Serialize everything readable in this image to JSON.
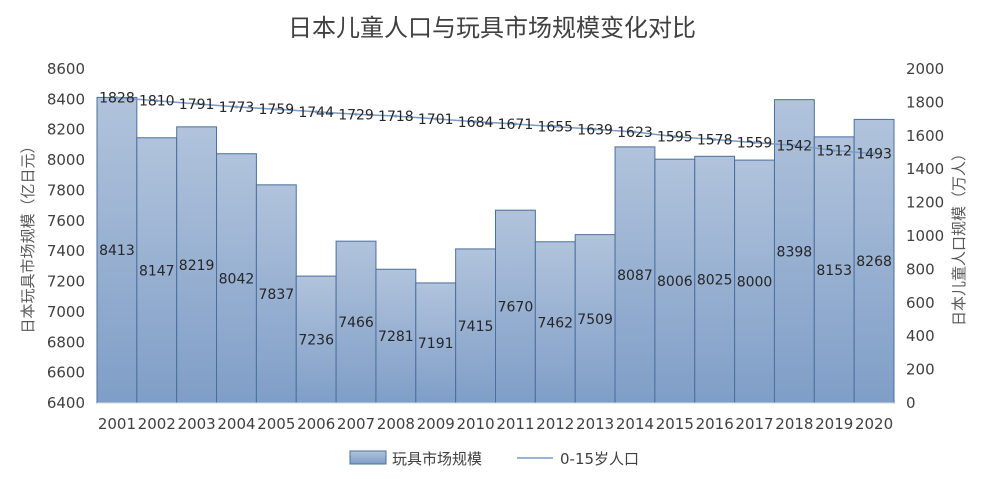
{
  "chart_data": {
    "type": "bar",
    "title": "日本儿童人口与玩具市场规模变化对比",
    "categories": [
      "2001",
      "2002",
      "2003",
      "2004",
      "2005",
      "2006",
      "2007",
      "2008",
      "2009",
      "2010",
      "2011",
      "2012",
      "2013",
      "2014",
      "2015",
      "2016",
      "2017",
      "2018",
      "2019",
      "2020"
    ],
    "series": [
      {
        "name": "玩具市场规模",
        "kind": "bar",
        "axis": "left",
        "values": [
          8413,
          8147,
          8219,
          8042,
          7837,
          7236,
          7466,
          7281,
          7191,
          7415,
          7670,
          7462,
          7509,
          8087,
          8006,
          8025,
          8000,
          8398,
          8153,
          8268
        ],
        "labels": [
          "8413",
          "8147",
          "8219",
          "8042",
          "7837",
          "7236",
          "7466",
          "7281",
          "7191",
          "7415",
          "7670",
          "7462",
          "7509",
          "8087",
          "8006",
          "8025",
          "8000",
          "8398",
          "8153",
          "8268"
        ]
      },
      {
        "name": "0-15岁人口",
        "kind": "line",
        "axis": "right",
        "values": [
          1828,
          1810,
          1791,
          1773,
          1759,
          1744,
          1729,
          1718,
          1701,
          1684,
          1671,
          1655,
          1639,
          1623,
          1595,
          1578,
          1559,
          1542,
          1512,
          1493
        ],
        "labels": [
          "1828",
          "1810",
          "1791",
          "1773",
          "1759",
          "1744",
          "1729",
          "1718",
          "1701",
          "1684",
          "1671",
          "1655",
          "1639",
          "1623",
          "1595",
          "1578",
          "1559",
          "1542",
          "1512",
          "1493"
        ]
      }
    ],
    "ylabel": "日本玩具市场规模（亿日元）",
    "y2label": "日本儿童人口规模（万人）",
    "ylim": [
      6400,
      8600
    ],
    "y2lim": [
      0,
      2000
    ],
    "yticks": [
      "6400",
      "6600",
      "6800",
      "7000",
      "7200",
      "7400",
      "7600",
      "7800",
      "8000",
      "8200",
      "8400",
      "8600"
    ],
    "y2ticks": [
      "0",
      "200",
      "400",
      "600",
      "800",
      "1000",
      "1200",
      "1400",
      "1600",
      "1800",
      "2000"
    ],
    "grid": false,
    "legend_position": "bottom",
    "colors": {
      "bar_top": "#a9bdd9",
      "bar_bottom": "#7f9ec7",
      "bar_border": "#4a6f9c",
      "line": "#7a9cc6",
      "axis": "#d9d9d9"
    }
  }
}
